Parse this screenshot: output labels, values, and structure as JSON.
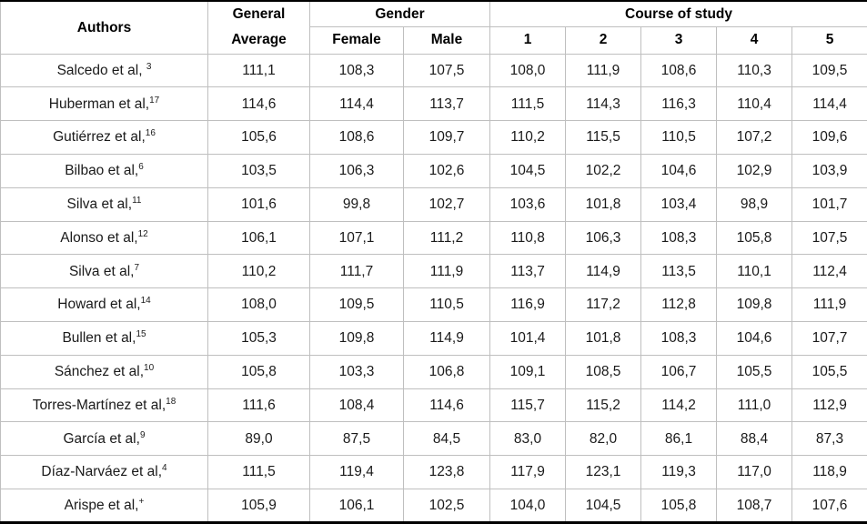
{
  "table": {
    "headers": {
      "authors": "Authors",
      "general_average_line1": "General",
      "general_average_line2": "Average",
      "gender": "Gender",
      "female": "Female",
      "male": "Male",
      "course_of_study": "Course of study",
      "courses": [
        "1",
        "2",
        "3",
        "4",
        "5"
      ]
    },
    "rows": [
      {
        "author": "Salcedo et al, ",
        "sup": "3",
        "values": [
          "111,1",
          "108,3",
          "107,5",
          "108,0",
          "111,9",
          "108,6",
          "110,3",
          "109,5"
        ]
      },
      {
        "author": "Huberman et al,",
        "sup": "17",
        "values": [
          "114,6",
          "114,4",
          "113,7",
          "111,5",
          "114,3",
          "116,3",
          "110,4",
          "114,4"
        ]
      },
      {
        "author": "Gutiérrez et al,",
        "sup": "16",
        "values": [
          "105,6",
          "108,6",
          "109,7",
          "110,2",
          "115,5",
          "110,5",
          "107,2",
          "109,6"
        ]
      },
      {
        "author": "Bilbao et al,",
        "sup": "6",
        "values": [
          "103,5",
          "106,3",
          "102,6",
          "104,5",
          "102,2",
          "104,6",
          "102,9",
          "103,9"
        ]
      },
      {
        "author": "Silva et al,",
        "sup": "11",
        "values": [
          "101,6",
          "99,8",
          "102,7",
          "103,6",
          "101,8",
          "103,4",
          "98,9",
          "101,7"
        ]
      },
      {
        "author": "Alonso et al,",
        "sup": "12",
        "values": [
          "106,1",
          "107,1",
          "111,2",
          "110,8",
          "106,3",
          "108,3",
          "105,8",
          "107,5"
        ]
      },
      {
        "author": "Silva et al,",
        "sup": "7",
        "values": [
          "110,2",
          "111,7",
          "111,9",
          "113,7",
          "114,9",
          "113,5",
          "110,1",
          "112,4"
        ]
      },
      {
        "author": "Howard et al,",
        "sup": "14",
        "values": [
          "108,0",
          "109,5",
          "110,5",
          "116,9",
          "117,2",
          "112,8",
          "109,8",
          "111,9"
        ]
      },
      {
        "author": "Bullen et al,",
        "sup": "15",
        "values": [
          "105,3",
          "109,8",
          "114,9",
          "101,4",
          "101,8",
          "108,3",
          "104,6",
          "107,7"
        ]
      },
      {
        "author": "Sánchez et al,",
        "sup": "10",
        "values": [
          "105,8",
          "103,3",
          "106,8",
          "109,1",
          "108,5",
          "106,7",
          "105,5",
          "105,5"
        ]
      },
      {
        "author": "Torres-Martínez et al,",
        "sup": "18",
        "values": [
          "111,6",
          "108,4",
          "114,6",
          "115,7",
          "115,2",
          "114,2",
          "111,0",
          "112,9"
        ]
      },
      {
        "author": "García et al,",
        "sup": "9",
        "values": [
          "89,0",
          "87,5",
          "84,5",
          "83,0",
          "82,0",
          "86,1",
          "88,4",
          "87,3"
        ]
      },
      {
        "author": "Díaz-Narváez et al,",
        "sup": "4",
        "values": [
          "111,5",
          "119,4",
          "123,8",
          "117,9",
          "123,1",
          "119,3",
          "117,0",
          "118,9"
        ]
      },
      {
        "author": "Arispe et al,",
        "sup": "+",
        "values": [
          "105,9",
          "106,1",
          "102,5",
          "104,0",
          "104,5",
          "105,8",
          "108,7",
          "107,6"
        ]
      }
    ]
  },
  "colors": {
    "border_light": "#bfbfbf",
    "border_dark": "#000000",
    "text": "#1a1a1a",
    "background": "#ffffff"
  }
}
